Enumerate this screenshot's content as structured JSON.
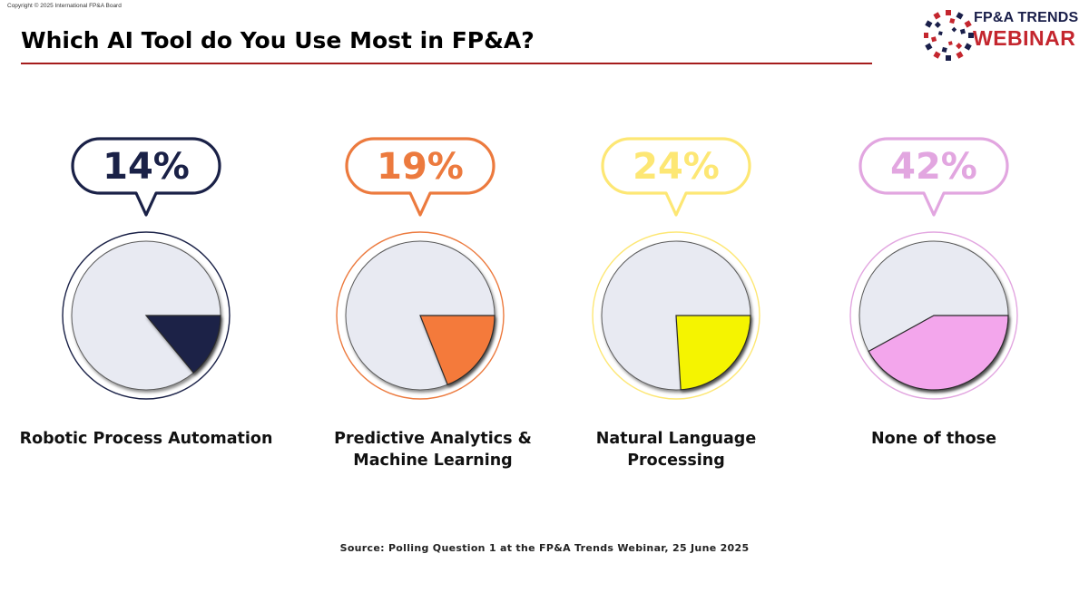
{
  "copyright": "Copyright © 2025 International FP&A Board",
  "title": "Which AI Tool do You Use Most in FP&A?",
  "logo": {
    "line1": "FP&A TRENDS",
    "line2": "WEBINAR",
    "colors": {
      "navy": "#1a1f4a",
      "red": "#c4262e"
    }
  },
  "chart_data": {
    "type": "pie",
    "title": "Which AI Tool do You Use Most in FP&A?",
    "series": [
      {
        "category": "Robotic Process Automation",
        "value": 14,
        "label": "14%",
        "color": "#1a2147",
        "ring": "#1a2147"
      },
      {
        "category": "Predictive Analytics & Machine Learning",
        "value": 19,
        "label": "19%",
        "color": "#f47a3b",
        "ring": "#ec7a3e"
      },
      {
        "category": "Natural Language Processing",
        "value": 24,
        "label": "24%",
        "color": "#f5f400",
        "ring": "#fde774"
      },
      {
        "category": "None of those",
        "value": 42,
        "label": "42%",
        "color": "#f3a6ec",
        "ring": "#e2a6e0"
      }
    ],
    "remainder_color": "#e8eaf2"
  },
  "source": "Source: Polling Question 1 at the FP&A Trends Webinar, 25 June 2025"
}
